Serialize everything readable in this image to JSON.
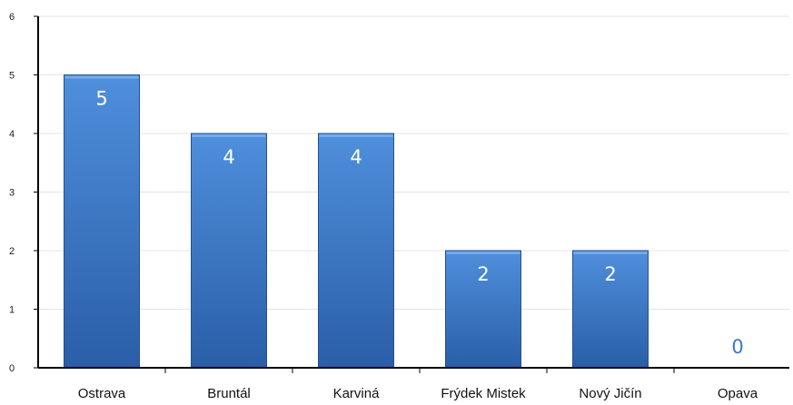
{
  "chart_data": {
    "type": "bar",
    "categories": [
      "Ostrava",
      "Bruntál",
      "Karviná",
      "Frýdek Mistek",
      "Nový Jičín",
      "Opava"
    ],
    "values": [
      5,
      4,
      4,
      2,
      2,
      0
    ],
    "title": "",
    "xlabel": "",
    "ylabel": "",
    "ylim": [
      0,
      6
    ],
    "yticks": [
      "0",
      "1",
      "2",
      "3",
      "4",
      "5",
      "6"
    ],
    "data_labels": [
      "5",
      "4",
      "4",
      "2",
      "2",
      "0"
    ],
    "grid": true,
    "legend": "none",
    "colors": {
      "bar_top": "#4f8fdc",
      "bar_bottom": "#2a5ea8",
      "bar_edge": "#22508f",
      "label_inside": "#ffffff",
      "label_outside": "#3b78c8",
      "grid": "#e4e4e4",
      "axis": "#000000"
    }
  }
}
